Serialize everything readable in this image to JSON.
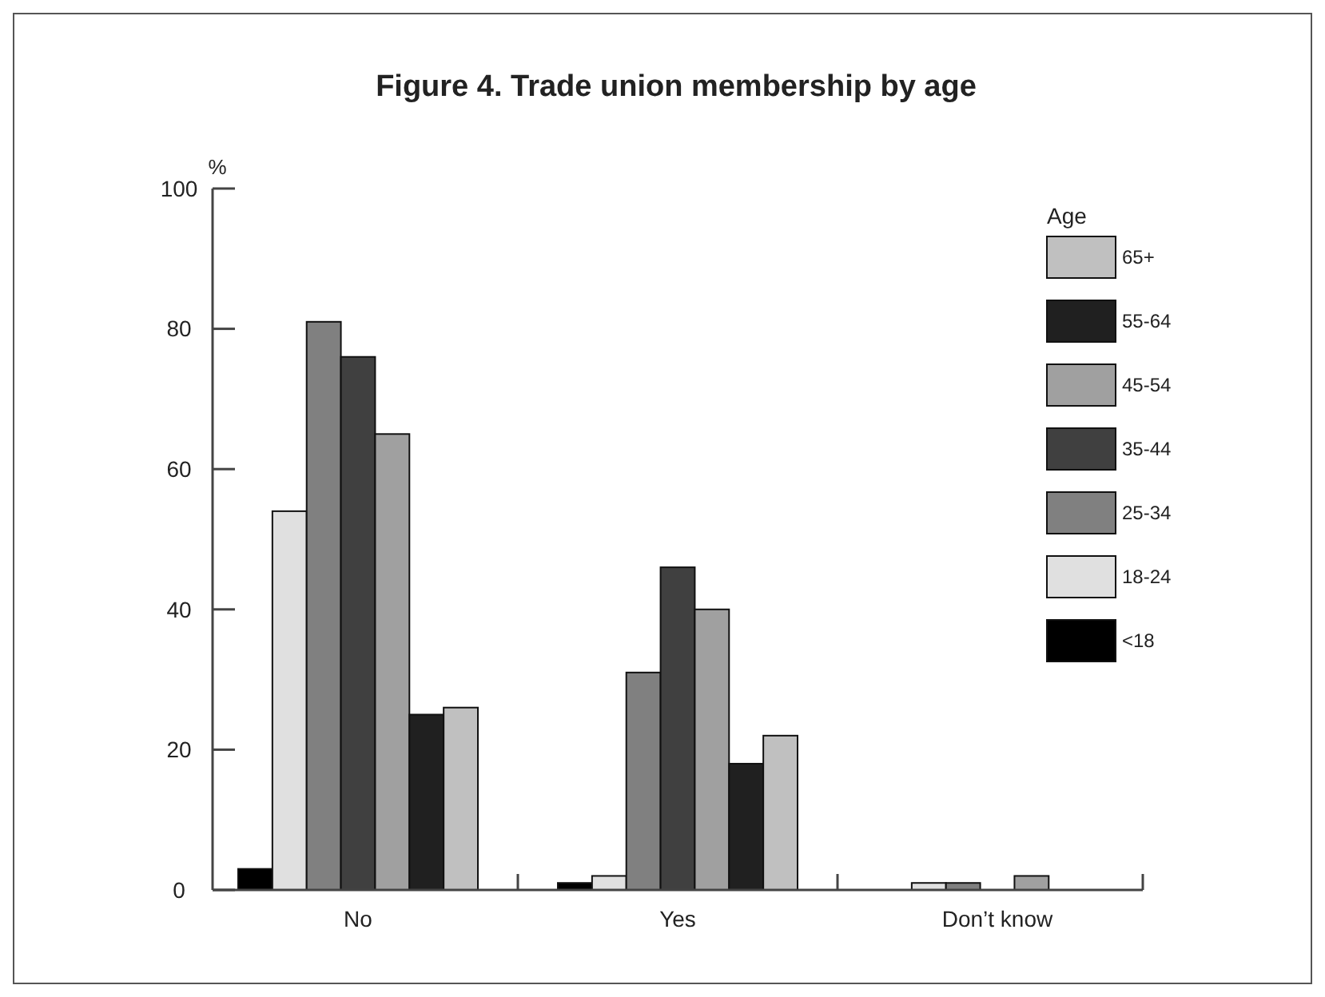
{
  "chart_data": {
    "type": "bar",
    "title": "Figure 4. Trade union membership by age",
    "ylabel": "%",
    "legend_title": "Age",
    "categories": [
      "No",
      "Yes",
      "Don’t know"
    ],
    "series": [
      {
        "name": "<18",
        "color": "#000000",
        "values": [
          3,
          1,
          0
        ]
      },
      {
        "name": "18-24",
        "color": "#e0e0e0",
        "values": [
          54,
          2,
          1
        ]
      },
      {
        "name": "25-34",
        "color": "#808080",
        "values": [
          81,
          31,
          1
        ]
      },
      {
        "name": "35-44",
        "color": "#404040",
        "values": [
          76,
          46,
          0
        ]
      },
      {
        "name": "45-54",
        "color": "#a0a0a0",
        "values": [
          65,
          40,
          2
        ]
      },
      {
        "name": "55-64",
        "color": "#202020",
        "values": [
          25,
          18,
          0
        ]
      },
      {
        "name": "65+",
        "color": "#c0c0c0",
        "values": [
          26,
          22,
          0
        ]
      }
    ],
    "ylim": [
      0,
      100
    ],
    "yticks": [
      0,
      20,
      40,
      60,
      80,
      100
    ],
    "legend": "top right",
    "grid": false
  }
}
